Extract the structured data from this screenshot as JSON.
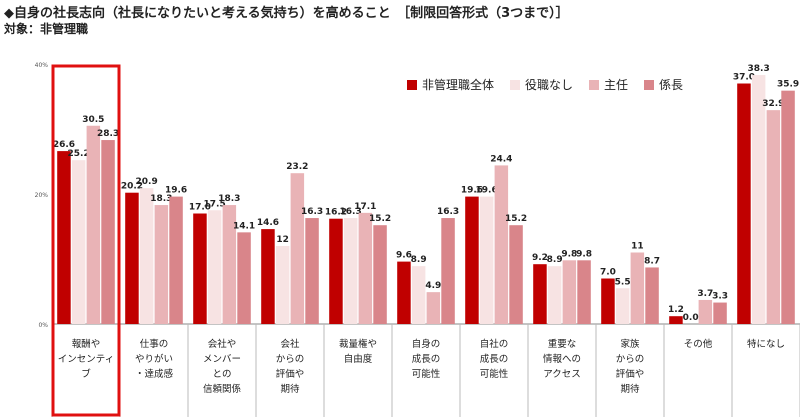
{
  "header": {
    "title": "◆自身の社長志向（社長になりたいと考える気持ち）を高めること　［制限回答形式（3つまで）］",
    "subtitle": "対象：非管理職"
  },
  "colors": {
    "series": [
      "#c00000",
      "#f7e3e3",
      "#e9b3b6",
      "#d9858a"
    ],
    "highlight_box": "#e01010",
    "axis": "#888888",
    "divider": "#bbbbbb"
  },
  "chart_data": {
    "type": "bar",
    "ylim": [
      0,
      40
    ],
    "yticks": [
      "0%",
      "20%",
      "40%"
    ],
    "legend_position": "top-right",
    "categories": [
      [
        "報酬や",
        "インセンティ",
        "ブ"
      ],
      [
        "仕事の",
        "やりがい",
        "・達成感"
      ],
      [
        "会社や",
        "メンバー",
        "との",
        "信頼関係"
      ],
      [
        "会社",
        "からの",
        "評価や",
        "期待"
      ],
      [
        "裁量権や",
        "自由度"
      ],
      [
        "自身の",
        "成長の",
        "可能性"
      ],
      [
        "自社の",
        "成長の",
        "可能性"
      ],
      [
        "重要な",
        "情報への",
        "アクセス"
      ],
      [
        "家族",
        "からの",
        "評価や",
        "期待"
      ],
      [
        "その他"
      ],
      [
        "特になし"
      ]
    ],
    "series": [
      {
        "name": "非管理職全体",
        "values": [
          26.6,
          20.2,
          17.0,
          14.6,
          16.2,
          9.6,
          19.6,
          9.2,
          7.0,
          1.2,
          37.0
        ],
        "labels": [
          "26.6",
          "20.2",
          "17.0",
          "14.6",
          "16.2",
          "9.6",
          "19.6",
          "9.2",
          "7.0",
          "1.2",
          "37.0"
        ]
      },
      {
        "name": "役職なし",
        "values": [
          25.2,
          20.9,
          17.5,
          12,
          16.3,
          8.9,
          19.6,
          8.9,
          5.5,
          0.0,
          38.3
        ],
        "labels": [
          "25.2",
          "20.9",
          "17.5",
          "12",
          "16.3",
          "8.9",
          "19.6",
          "8.9",
          "5.5",
          "0.0",
          "38.3"
        ]
      },
      {
        "name": "主任",
        "values": [
          30.5,
          18.3,
          18.3,
          23.2,
          17.1,
          4.9,
          24.4,
          9.8,
          11,
          3.7,
          32.9
        ],
        "labels": [
          "30.5",
          "18.3",
          "18.3",
          "23.2",
          "17.1",
          "4.9",
          "24.4",
          "9.8",
          "11",
          "3.7",
          "32.9"
        ]
      },
      {
        "name": "係長",
        "values": [
          28.3,
          19.6,
          14.1,
          16.3,
          15.2,
          16.3,
          15.2,
          9.8,
          8.7,
          3.3,
          35.9
        ],
        "labels": [
          "28.3",
          "19.6",
          "14.1",
          "16.3",
          "15.2",
          "16.3",
          "15.2",
          "9.8",
          "8.7",
          "3.3",
          "35.9"
        ]
      }
    ],
    "highlighted_category_index": 0
  }
}
